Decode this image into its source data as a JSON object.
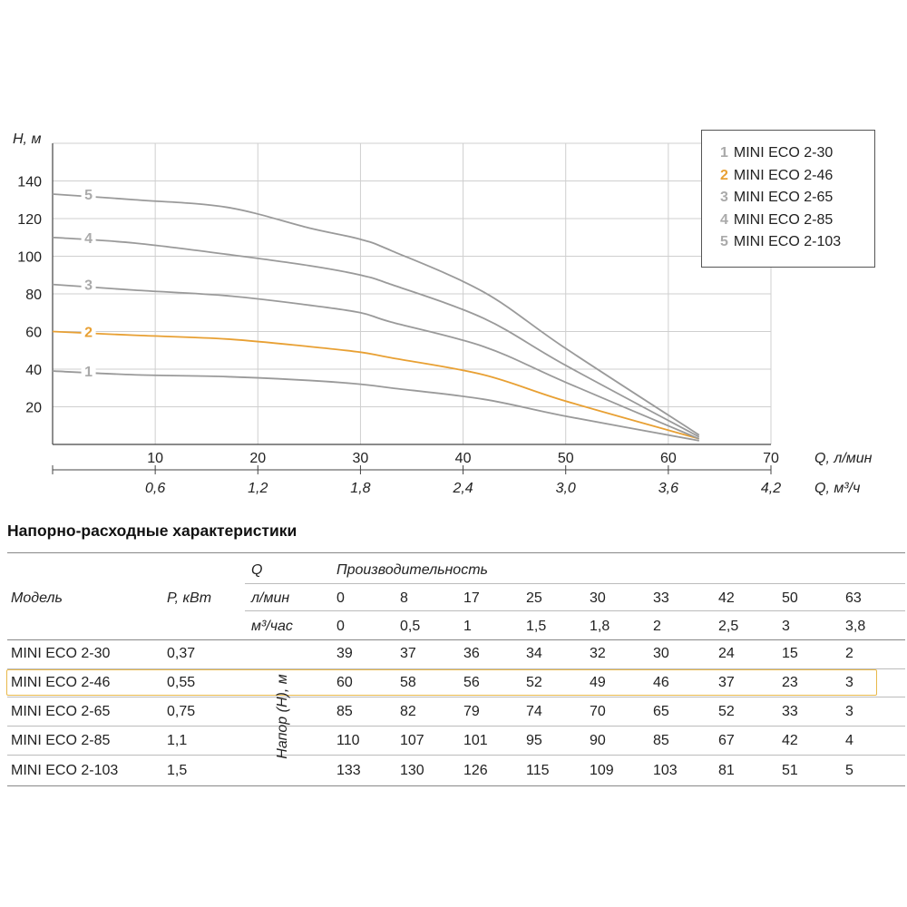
{
  "chart_data": {
    "type": "line",
    "ylabel": "H, м",
    "xlabel": "Q, л/мин",
    "x2label": "Q, м³/ч",
    "xlim": [
      0,
      70
    ],
    "ylim": [
      0,
      160
    ],
    "xticks": [
      "10",
      "20",
      "30",
      "40",
      "50",
      "60",
      "70"
    ],
    "x2ticks": [
      "0,6",
      "1,2",
      "1,8",
      "2,4",
      "3,0",
      "3,6",
      "4,2"
    ],
    "yticks": [
      "20",
      "40",
      "60",
      "80",
      "100",
      "120",
      "140"
    ],
    "grid": true,
    "legend_position": "top-right",
    "x": [
      0,
      8,
      17,
      25,
      30,
      33,
      42,
      50,
      63
    ],
    "series": [
      {
        "label": "1",
        "name": "MINI ECO 2-30",
        "color": "#aaaaaa",
        "values": [
          39,
          37,
          36,
          34,
          32,
          30,
          24,
          15,
          2
        ]
      },
      {
        "label": "2",
        "name": "MINI ECO 2-46",
        "color": "#e8a033",
        "values": [
          60,
          58,
          56,
          52,
          49,
          46,
          37,
          23,
          3
        ]
      },
      {
        "label": "3",
        "name": "MINI ECO 2-65",
        "color": "#aaaaaa",
        "values": [
          85,
          82,
          79,
          74,
          70,
          65,
          52,
          33,
          3
        ]
      },
      {
        "label": "4",
        "name": "MINI ECO 2-85",
        "color": "#aaaaaa",
        "values": [
          110,
          107,
          101,
          95,
          90,
          85,
          67,
          42,
          4
        ]
      },
      {
        "label": "5",
        "name": "MINI ECO 2-103",
        "color": "#aaaaaa",
        "values": [
          133,
          130,
          126,
          115,
          109,
          103,
          81,
          51,
          5
        ]
      }
    ]
  },
  "table": {
    "title": "Напорно-расходные характеристики",
    "header": {
      "q_label": "Q",
      "productivity_label": "Производительность",
      "model_label": "Модель",
      "power_label": "P, кВт",
      "lmin_label": "л/мин",
      "m3_label": "м³/час",
      "head_label": "Напор (Н), м",
      "lmin_values": [
        "0",
        "8",
        "17",
        "25",
        "30",
        "33",
        "42",
        "50",
        "63"
      ],
      "m3_values": [
        "0",
        "0,5",
        "1",
        "1,5",
        "1,8",
        "2",
        "2,5",
        "3",
        "3,8"
      ]
    },
    "rows": [
      {
        "model": "MINI ECO 2-30",
        "power": "0,37",
        "values": [
          "39",
          "37",
          "36",
          "34",
          "32",
          "30",
          "24",
          "15",
          "2"
        ]
      },
      {
        "model": "MINI ECO 2-46",
        "power": "0,55",
        "values": [
          "60",
          "58",
          "56",
          "52",
          "49",
          "46",
          "37",
          "23",
          "3"
        ],
        "highlighted": true
      },
      {
        "model": "MINI ECO 2-65",
        "power": "0,75",
        "values": [
          "85",
          "82",
          "79",
          "74",
          "70",
          "65",
          "52",
          "33",
          "3"
        ]
      },
      {
        "model": "MINI ECO 2-85",
        "power": "1,1",
        "values": [
          "110",
          "107",
          "101",
          "95",
          "90",
          "85",
          "67",
          "42",
          "4"
        ]
      },
      {
        "model": "MINI ECO 2-103",
        "power": "1,5",
        "values": [
          "133",
          "130",
          "126",
          "115",
          "109",
          "103",
          "81",
          "51",
          "5"
        ]
      }
    ]
  }
}
